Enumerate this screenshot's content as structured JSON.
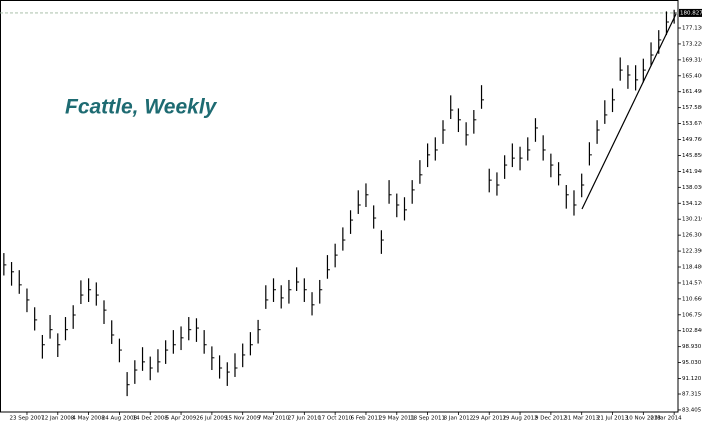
{
  "chart_data": {
    "type": "ohlc",
    "title": "Fcattle, Weekly",
    "categories": [
      null,
      null,
      null,
      "23 Sep 2007",
      null,
      null,
      null,
      "12 Jan 2008",
      null,
      null,
      null,
      "4 May 2008",
      null,
      null,
      null,
      "24 Aug 2008",
      null,
      null,
      null,
      "14 Dec 2008",
      null,
      null,
      null,
      "5 Apr 2009",
      null,
      null,
      null,
      "26 Jul 2009",
      null,
      null,
      null,
      "15 Nov 2009",
      null,
      null,
      null,
      "7 Mar 2010",
      null,
      null,
      null,
      "27 Jun 2010",
      null,
      null,
      null,
      "17 Oct 2010",
      null,
      null,
      null,
      "6 Feb 2011",
      null,
      null,
      null,
      "29 May 2011",
      null,
      null,
      null,
      "18 Sep 2011",
      null,
      null,
      null,
      "8 Jan 2012",
      null,
      null,
      null,
      "29 Apr 2012",
      null,
      null,
      null,
      "19 Aug 2012",
      null,
      null,
      null,
      "9 Dec 2012",
      null,
      null,
      null,
      "31 Mar 2013",
      null,
      null,
      null,
      "21 Jul 2013",
      null,
      null,
      null,
      "10 Nov 2013",
      null,
      null,
      null,
      "2 Mar 2014"
    ],
    "high": [
      121.9,
      119.7,
      117.7,
      113.2,
      108.6,
      101.8,
      106.7,
      102.2,
      106.2,
      109.1,
      115.2,
      115.7,
      114.7,
      110.3,
      105.4,
      100.9,
      92.7,
      95.6,
      98.8,
      96.5,
      98.3,
      100.5,
      103.0,
      103.9,
      106.2,
      105.9,
      103.0,
      99.0,
      96.8,
      95.1,
      97.3,
      99.7,
      102.5,
      105.5,
      114.0,
      115.7,
      114.0,
      115.3,
      118.4,
      115.7,
      112.3,
      115.3,
      121.4,
      124.2,
      128.2,
      132.4,
      137.3,
      139.0,
      133.6,
      127.5,
      139.8,
      136.5,
      135.6,
      139.8,
      144.7,
      148.8,
      150.3,
      154.5,
      160.6,
      157.4,
      154.0,
      157.0,
      163.1,
      142.6,
      141.7,
      145.9,
      148.8,
      148.0,
      150.3,
      155.0,
      150.8,
      146.3,
      144.2,
      138.6,
      137.3,
      141.4,
      149.1,
      154.5,
      159.4,
      162.3,
      169.9,
      168.0,
      168.0,
      169.6,
      173.6,
      176.6,
      181.2,
      181.6
    ],
    "low": [
      116.4,
      113.9,
      111.9,
      107.4,
      102.9,
      96.0,
      100.9,
      96.4,
      100.5,
      103.3,
      109.4,
      109.9,
      109.0,
      104.5,
      99.6,
      95.1,
      86.8,
      89.8,
      93.0,
      90.7,
      92.6,
      94.7,
      97.2,
      98.1,
      100.5,
      100.1,
      97.2,
      93.2,
      91.1,
      89.3,
      91.5,
      93.9,
      96.8,
      99.7,
      108.2,
      109.9,
      108.3,
      109.5,
      112.6,
      109.9,
      106.6,
      109.5,
      115.6,
      118.4,
      122.5,
      126.6,
      131.5,
      133.2,
      127.9,
      121.7,
      134.0,
      130.7,
      129.9,
      134.0,
      138.9,
      143.0,
      144.6,
      148.7,
      154.8,
      151.6,
      148.3,
      151.2,
      157.3,
      136.8,
      136.0,
      140.1,
      143.0,
      142.2,
      144.6,
      149.2,
      144.6,
      140.5,
      138.5,
      132.8,
      131.1,
      135.6,
      143.4,
      148.7,
      153.6,
      156.5,
      164.2,
      162.2,
      161.8,
      163.8,
      167.9,
      170.8,
      175.4,
      178.2
    ],
    "close": [
      119.0,
      117.3,
      114.1,
      110.4,
      105.5,
      99.4,
      103.1,
      99.4,
      103.1,
      106.7,
      111.6,
      112.9,
      111.6,
      107.9,
      101.8,
      98.1,
      89.6,
      93.2,
      95.2,
      93.7,
      95.2,
      98.1,
      99.4,
      101.1,
      103.1,
      103.5,
      99.4,
      96.2,
      93.7,
      92.7,
      93.7,
      96.9,
      99.4,
      103.1,
      110.4,
      112.9,
      110.9,
      112.9,
      114.8,
      112.9,
      109.2,
      112.9,
      117.8,
      121.4,
      125.1,
      130.0,
      133.7,
      136.2,
      130.5,
      125.1,
      136.2,
      133.7,
      132.5,
      137.4,
      141.1,
      146.0,
      147.2,
      152.1,
      157.0,
      154.6,
      150.9,
      154.6,
      159.5,
      139.8,
      138.6,
      143.5,
      145.2,
      145.2,
      147.2,
      152.6,
      147.2,
      143.5,
      141.1,
      136.2,
      133.7,
      138.6,
      146.0,
      152.1,
      155.8,
      159.5,
      166.8,
      165.6,
      164.4,
      166.8,
      170.5,
      174.2,
      178.6,
      180.8
    ],
    "color": "#000000",
    "last_price": 180.827,
    "ylim": [
      82.9,
      184.0
    ],
    "yticks": [
      83.405,
      87.315,
      {
        "value": 91.12,
        "label": "91.120"
      },
      {
        "value": 95.03,
        "label": "95.030"
      },
      {
        "value": 98.93,
        "label": "98.930"
      },
      {
        "value": 102.84,
        "label": "102.840"
      },
      {
        "value": 106.75,
        "label": "106.750"
      },
      {
        "value": 110.66,
        "label": "110.660"
      },
      {
        "value": 114.57,
        "label": "114.570"
      },
      {
        "value": 118.48,
        "label": "118.480"
      },
      {
        "value": 122.39,
        "label": "122.390"
      },
      {
        "value": 126.3,
        "label": "126.300"
      },
      {
        "value": 130.21,
        "label": "130.210"
      },
      {
        "value": 134.12,
        "label": "134.120"
      },
      {
        "value": 138.03,
        "label": "138.030"
      },
      {
        "value": 141.94,
        "label": "141.940"
      },
      {
        "value": 145.85,
        "label": "145.850"
      },
      {
        "value": 149.76,
        "label": "149.760"
      },
      {
        "value": 153.67,
        "label": "153.670"
      },
      {
        "value": 157.58,
        "label": "157.580"
      },
      {
        "value": 161.49,
        "label": "161.490"
      },
      {
        "value": 165.4,
        "label": "165.400"
      },
      {
        "value": 169.31,
        "label": "169.310"
      },
      {
        "value": 173.22,
        "label": "173.220"
      },
      {
        "value": 177.13,
        "label": "177.130"
      }
    ]
  }
}
